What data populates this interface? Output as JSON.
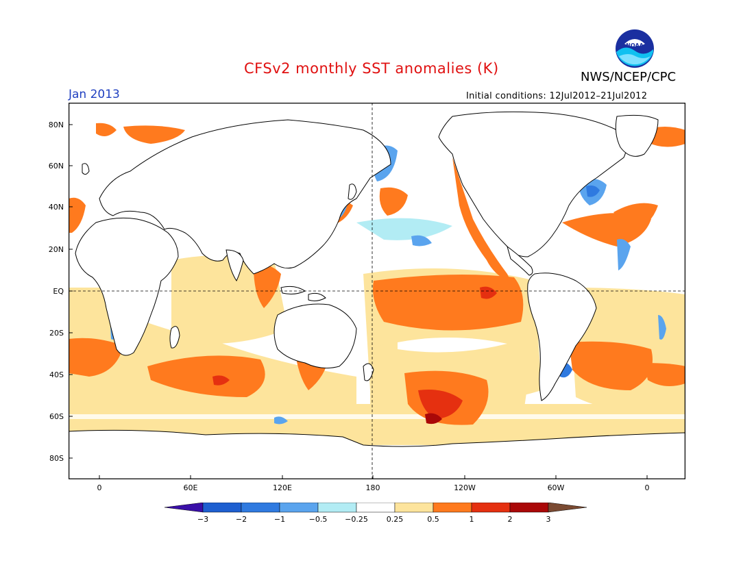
{
  "header": {
    "title": "CFSv2 monthly SST anomalies (K)",
    "organization": "NWS/NCEP/CPC",
    "logo_text": "NOAA",
    "period": "Jan 2013",
    "initial_conditions": "Initial conditions: 12Jul2012–21Jul2012"
  },
  "map": {
    "lat_labels": [
      "80N",
      "60N",
      "40N",
      "20N",
      "EQ",
      "20S",
      "40S",
      "60S",
      "80S"
    ],
    "lon_labels": [
      "0",
      "60E",
      "120E",
      "180",
      "120W",
      "60W",
      "0"
    ],
    "reference_lines": [
      "EQ",
      "180"
    ]
  },
  "colorbar": {
    "labels": [
      "−3",
      "−2",
      "−1",
      "−0.5",
      "−0.25",
      "0.25",
      "0.5",
      "1",
      "2",
      "3"
    ],
    "colors": [
      "#3a0fa8",
      "#1e5fd0",
      "#2f7ae0",
      "#5aa4ee",
      "#b2ecf4",
      "#ffffff",
      "#fde49c",
      "#ff7a1e",
      "#e53010",
      "#aa0808",
      "#7a4a32"
    ]
  }
}
